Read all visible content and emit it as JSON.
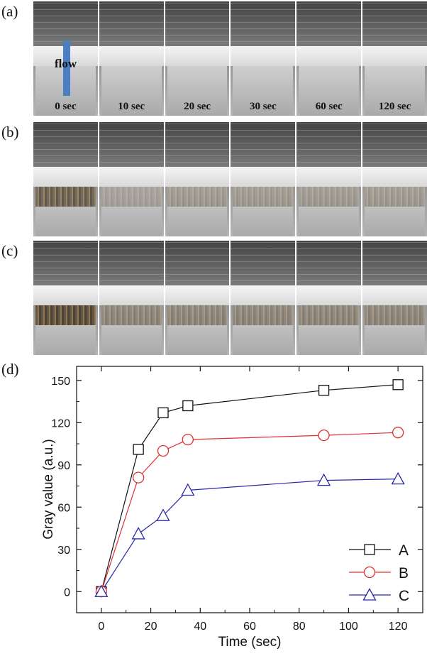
{
  "panels": {
    "a": "(a)",
    "b": "(b)",
    "c": "(c)",
    "d": "(d)"
  },
  "photo_a": {
    "flow_label": "flow",
    "time_labels": [
      "0 sec",
      "10 sec",
      "20 sec",
      "30 sec",
      "60 sec",
      "120 sec"
    ]
  },
  "chart_data": {
    "type": "line",
    "xlabel": "Time (sec)",
    "ylabel": "Gray value (a.u.)",
    "xlim": [
      -10,
      130
    ],
    "ylim": [
      -15,
      160
    ],
    "xticks": [
      0,
      20,
      40,
      60,
      80,
      100,
      120
    ],
    "yticks": [
      0,
      30,
      60,
      90,
      120,
      150
    ],
    "grid": false,
    "legend_position": "bottom-right",
    "series": [
      {
        "name": "A",
        "color": "#111111",
        "marker": "square",
        "x": [
          0,
          15,
          25,
          35,
          90,
          120
        ],
        "y": [
          0,
          101,
          127,
          132,
          143,
          147
        ]
      },
      {
        "name": "B",
        "color": "#e03030",
        "marker": "circle",
        "x": [
          0,
          15,
          25,
          35,
          90,
          120
        ],
        "y": [
          0,
          81,
          100,
          108,
          111,
          113
        ]
      },
      {
        "name": "C",
        "color": "#2a2aa8",
        "marker": "triangle",
        "x": [
          0,
          15,
          25,
          35,
          90,
          120
        ],
        "y": [
          0,
          41,
          54,
          72,
          79,
          80
        ]
      }
    ]
  }
}
